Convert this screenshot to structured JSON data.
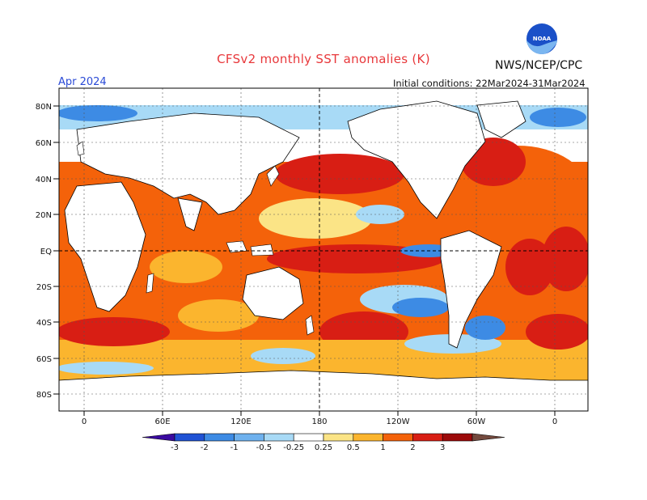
{
  "title": "CFSv2 monthly SST anomalies (K)",
  "agency": "NWS/NCEP/CPC",
  "logo_text": "NOAA",
  "forecast_month": "Apr 2024",
  "initial_conditions": "Initial conditions: 22Mar2024-31Mar2024",
  "lat_labels": [
    "80N",
    "60N",
    "40N",
    "20N",
    "EQ",
    "20S",
    "40S",
    "60S",
    "80S"
  ],
  "lon_labels": [
    "0",
    "60E",
    "120E",
    "180",
    "120W",
    "60W",
    "0"
  ],
  "colorbar": {
    "labels": [
      "-3",
      "-2",
      "-1",
      "-0.5",
      "-0.25",
      "0.25",
      "0.5",
      "1",
      "2",
      "3"
    ],
    "colors": [
      "#3a0aa0",
      "#1f52d4",
      "#3d8be4",
      "#6eb1ee",
      "#a8daf6",
      "#ffffff",
      "#fbe486",
      "#fbb52e",
      "#f4620a",
      "#d81e14",
      "#9c0a0a",
      "#744a3e"
    ]
  },
  "colors": {
    "ocean_warm": "#f4620a",
    "ocean_hot": "#d81e14",
    "ocean_mild": "#fbb52e",
    "ocean_cool": "#3d8be4",
    "land": "#ffffff"
  }
}
